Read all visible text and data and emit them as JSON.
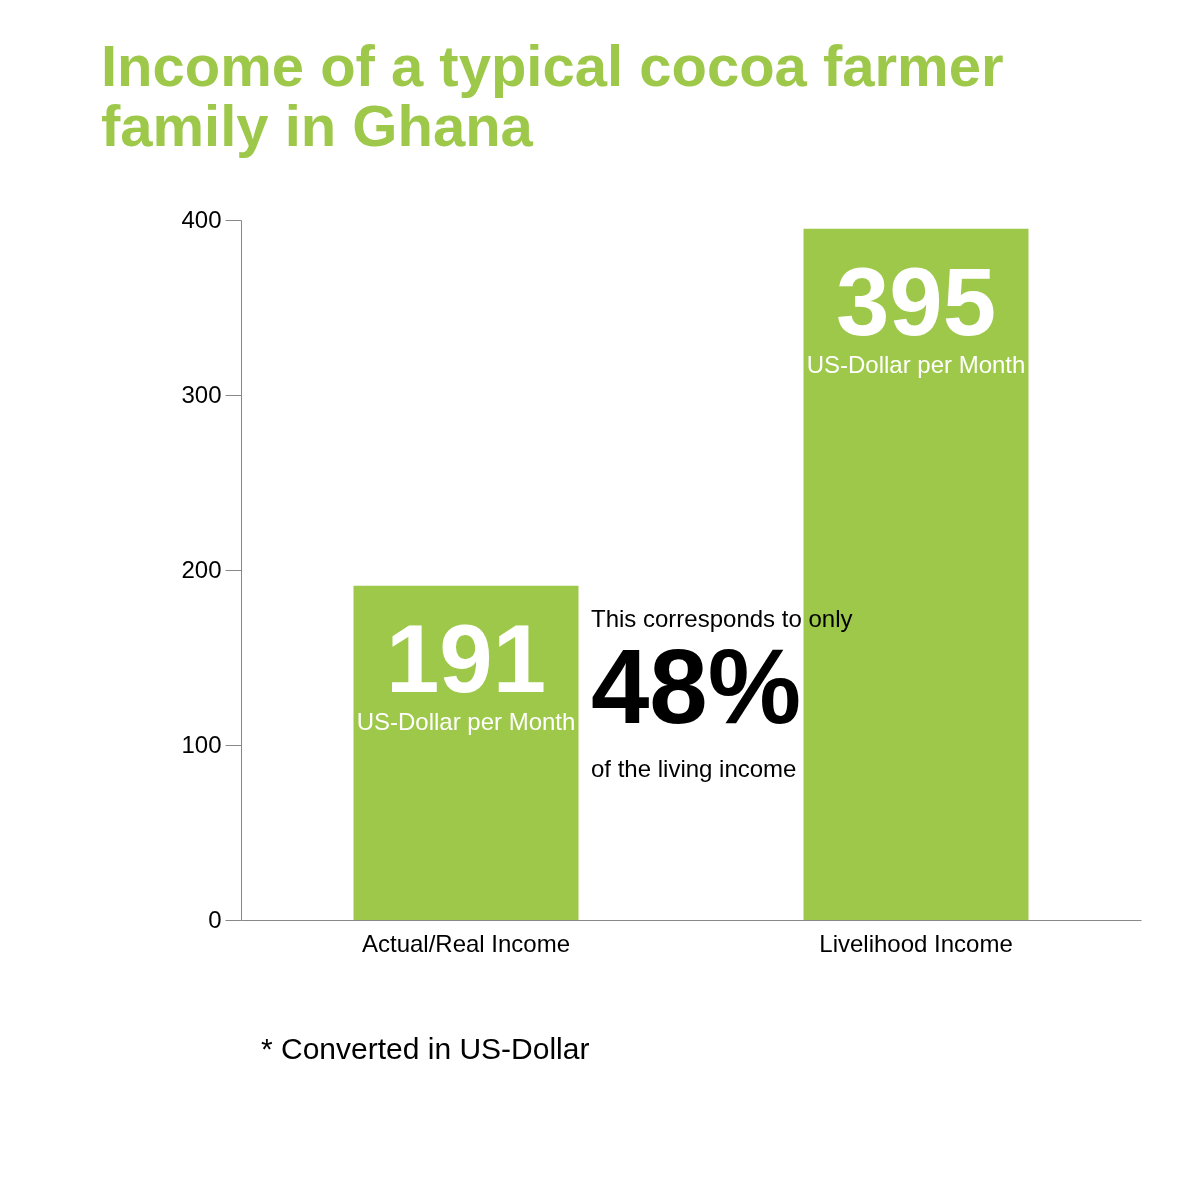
{
  "chart_data": {
    "type": "bar",
    "title": [
      "Income of  a typical cocoa farmer",
      "family in Ghana"
    ],
    "categories": [
      "Actual/Real Income",
      "Livelihood Income"
    ],
    "values": [
      191,
      395
    ],
    "color": "#9dc84a",
    "value_labels": [
      "191",
      "395"
    ],
    "ylim": [
      0,
      400
    ],
    "yticks": [
      0,
      100,
      200,
      300,
      400
    ],
    "grid": false,
    "annotations": [
      "US-Dollar per Month",
      "US-Dollar per Month",
      "This corresponds to only",
      "48%",
      "of the living income",
      "* Converted in US-Dollar"
    ]
  }
}
